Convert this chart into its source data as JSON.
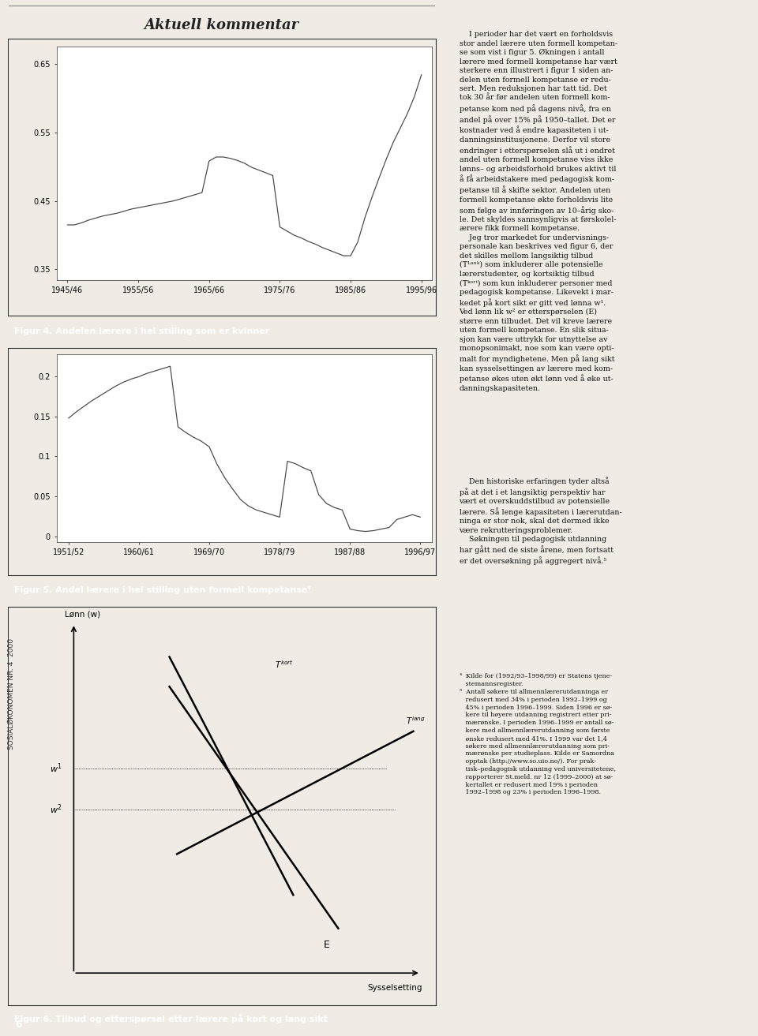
{
  "fig4_caption": "Figur 4. Andelen lærere i hel stilling som er kvinner",
  "fig5_caption": "Figur 5. Andel lærere i hel stilling uten formell kompetanse⁴",
  "fig6_caption": "Figur 6. Tilbud og etterspørsel etter lærere på kort og lang sikt",
  "header": "Aktuell kommentar",
  "page_bg": "#f0ece5",
  "plot_bg": "#ffffff",
  "caption_bg": "#111111",
  "caption_color": "#ffffff",
  "line_color": "#444444",
  "fig4_yticks": [
    0.35,
    0.45,
    0.55,
    0.65
  ],
  "fig4_xtick_labels": [
    "1945/46",
    "1955/56",
    "1965/66",
    "1975/76",
    "1985/86",
    "1995/96"
  ],
  "fig4_xtick_pos": [
    1945.5,
    1955.5,
    1965.5,
    1975.5,
    1985.5,
    1995.5
  ],
  "fig4_xlim": [
    1944,
    1997
  ],
  "fig4_ylim": [
    0.335,
    0.675
  ],
  "fig5_yticks": [
    0,
    0.05,
    0.1,
    0.15,
    0.2
  ],
  "fig5_xtick_labels": [
    "1951/52",
    "1960/61",
    "1969/70",
    "1978/79",
    "1987/88",
    "1996/97"
  ],
  "fig5_xtick_pos": [
    1951.5,
    1960.5,
    1969.5,
    1978.5,
    1987.5,
    1996.5
  ],
  "fig5_xlim": [
    1950,
    1998
  ],
  "fig5_ylim": [
    -0.007,
    0.228
  ],
  "fig6_ylabel": "Lønn (w)",
  "fig6_xlabel": "Sysselsetting",
  "right_col_text": "I perioder har det vært en forholdsvis stor andel lærere uten formell kompetanse som vist i figur 5.",
  "sidebar_text": "SOSIALÓKONOMEN NR. 4  2000",
  "page_number": "6"
}
